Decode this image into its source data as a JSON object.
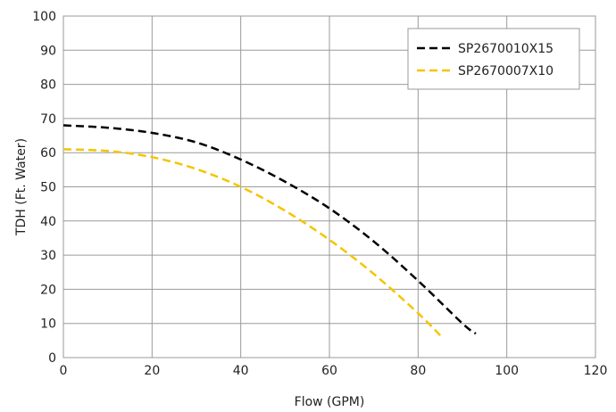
{
  "chart_data": {
    "type": "line",
    "title": "",
    "xlabel": "Flow (GPM)",
    "ylabel": "TDH (Ft. Water)",
    "xlim": [
      0,
      120
    ],
    "ylim": [
      0,
      100
    ],
    "xticks": [
      0,
      20,
      40,
      60,
      80,
      100,
      120
    ],
    "yticks": [
      0,
      10,
      20,
      30,
      40,
      50,
      60,
      70,
      80,
      90,
      100
    ],
    "grid": true,
    "legend_position": "top-right",
    "series": [
      {
        "name": "SP2670010X15",
        "color": "#000000",
        "x": [
          0,
          10,
          20,
          30,
          40,
          50,
          60,
          70,
          80,
          90,
          93
        ],
        "y": [
          68,
          67.3,
          65.8,
          63,
          58,
          51.5,
          43.7,
          34,
          22.5,
          10,
          7
        ]
      },
      {
        "name": "SP2670007X10",
        "color": "#f5c400",
        "x": [
          0,
          10,
          20,
          30,
          40,
          50,
          60,
          70,
          80,
          85
        ],
        "y": [
          61,
          60.5,
          58.7,
          55.2,
          50,
          43,
          34.5,
          24.5,
          13,
          6.5
        ]
      }
    ]
  }
}
